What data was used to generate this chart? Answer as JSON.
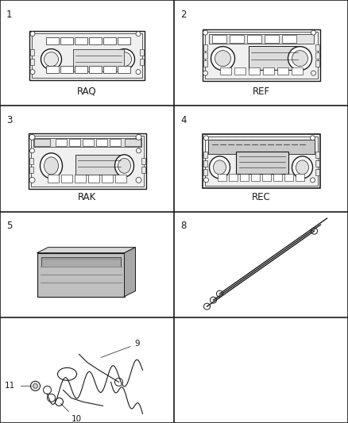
{
  "background_color": "#ffffff",
  "grid_color": "#111111",
  "grid_linewidth": 1.2,
  "cells": [
    {
      "row": 0,
      "col": 0,
      "item_num": "1",
      "label": "RAQ"
    },
    {
      "row": 0,
      "col": 1,
      "item_num": "2",
      "label": "REF"
    },
    {
      "row": 1,
      "col": 0,
      "item_num": "3",
      "label": "RAK"
    },
    {
      "row": 1,
      "col": 1,
      "item_num": "4",
      "label": "REC"
    },
    {
      "row": 2,
      "col": 0,
      "item_num": "5",
      "label": ""
    },
    {
      "row": 2,
      "col": 1,
      "item_num": "8",
      "label": ""
    },
    {
      "row": 3,
      "col": 0,
      "item_num": "",
      "label": ""
    },
    {
      "row": 3,
      "col": 1,
      "item_num": "",
      "label": ""
    }
  ],
  "num_rows": 4,
  "num_cols": 2,
  "draw_color": "#1a1a1a",
  "label_fontsize": 8.5,
  "num_fontsize": 8.5
}
